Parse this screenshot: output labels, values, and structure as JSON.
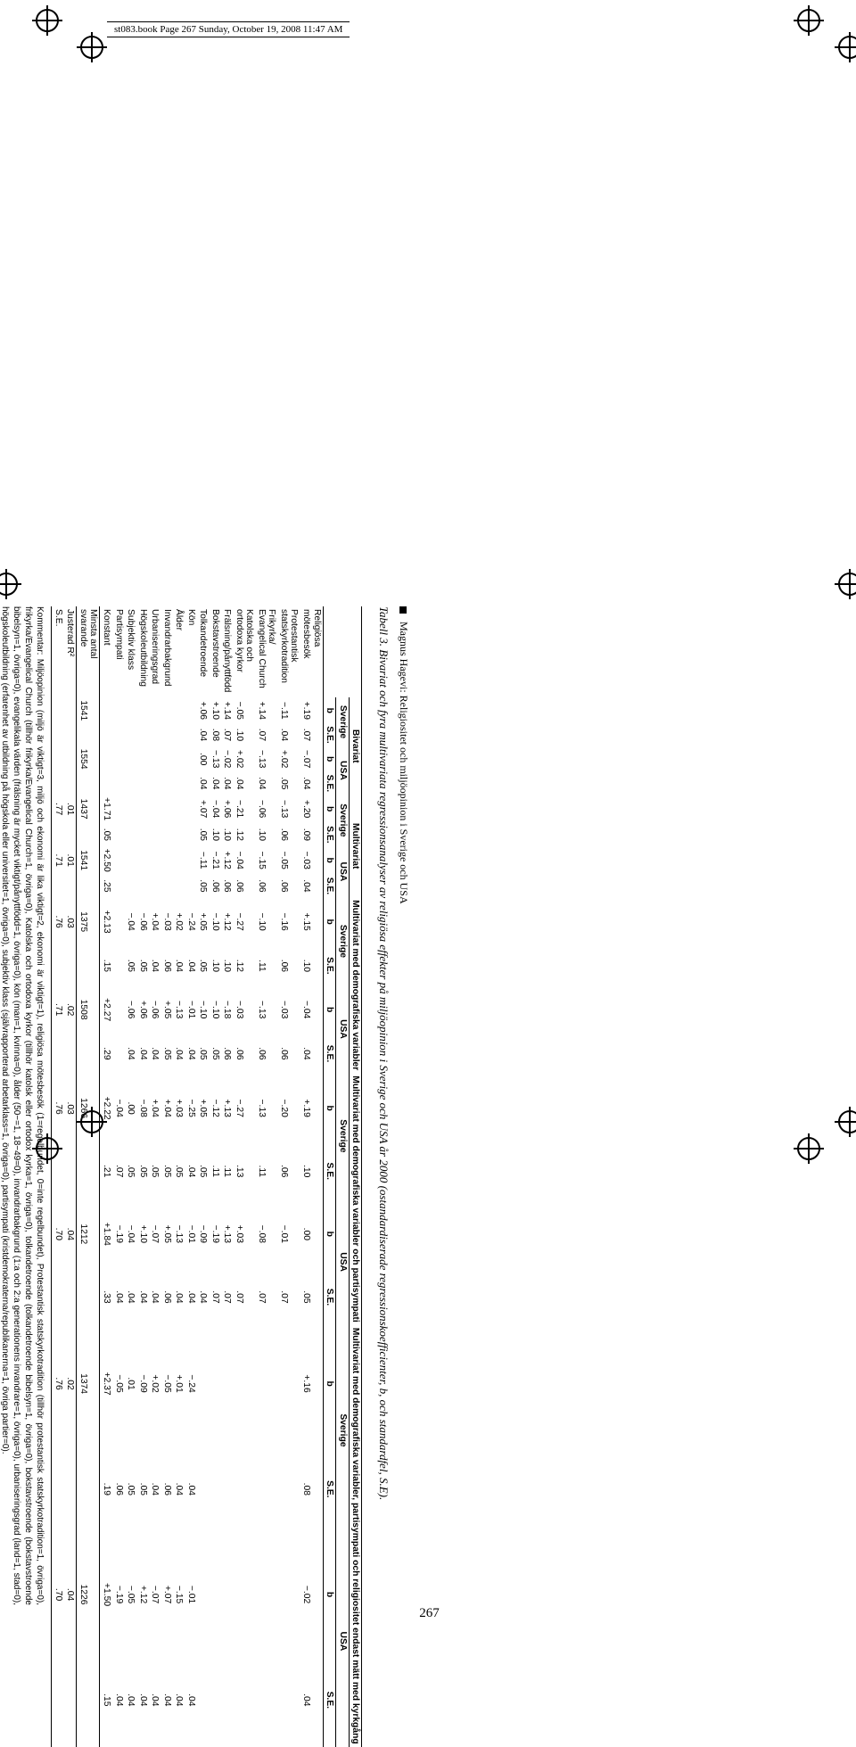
{
  "print_header": "st083.book  Page 267  Sunday, October 19, 2008  11:47 AM",
  "page_number": "267",
  "chapter_author": "Magnus Hagevi:",
  "chapter_title": "Religiositet och miljöopinion i Sverige och USA",
  "table_caption": "Tabell 3. Bivariat och fyra multivariata regressionsanalyser av religiösa effekter på miljöopinion i Sverige och USA år 2000 (ostandardiserade regressionskoefficienter, b, och standardfel, S.E).",
  "model_heads": {
    "m1": "Bivariat",
    "m2": "Multivariat",
    "m3": "Multivariat med demografiska variabler",
    "m4": "Multivariat med demografiska variabler och partisympati",
    "m5": "Multivariat med demografiska variabler, partisympati och religiositet endast mätt med kyrkgång"
  },
  "country": {
    "sv": "Sverige",
    "us": "USA"
  },
  "stat": {
    "b": "b",
    "se": "S.E."
  },
  "rows": [
    {
      "label": "Religiösa mötesbesök",
      "v": [
        "+.19",
        ".07",
        "−.07",
        ".04",
        "+.20",
        ".09",
        "−.03",
        ".04",
        "+.15",
        ".10",
        "−.04",
        ".04",
        "+.19",
        ".10",
        ".00",
        ".05",
        "+.16",
        ".08",
        "−.02",
        ".04"
      ]
    },
    {
      "label": "Protestantisk statskyrkotradition",
      "v": [
        "−.11",
        ".04",
        "+.02",
        ".05",
        "−.13",
        ".06",
        "−.05",
        ".06",
        "−.16",
        ".06",
        "−.03",
        ".06",
        "−.20",
        ".06",
        "−.01",
        ".07",
        "",
        "",
        "",
        ""
      ]
    },
    {
      "label": "Frikyrka/ Evangelical Church",
      "v": [
        "+.14",
        ".07",
        "−.13",
        ".04",
        "−.06",
        ".10",
        "−.15",
        ".06",
        "−.10",
        ".11",
        "−.13",
        ".06",
        "−.13",
        ".11",
        "−.08",
        ".07",
        "",
        "",
        "",
        ""
      ]
    },
    {
      "label": "Katolska och ortodoxa kyrkor",
      "v": [
        "−.05",
        ".10",
        "+.02",
        ".04",
        "−.21",
        ".12",
        "−.04",
        ".06",
        "−.27",
        ".12",
        "−.03",
        ".06",
        "−.27",
        ".13",
        "+.03",
        ".07",
        "",
        "",
        "",
        ""
      ]
    },
    {
      "label": "Frälsning/pånyttfödd",
      "v": [
        "+.14",
        ".07",
        "−.02",
        ".04",
        "+.06",
        ".10",
        "+.12",
        ".06",
        "+.12",
        ".10",
        "−.18",
        ".06",
        "+.13",
        ".11",
        "+.13",
        ".07",
        "",
        "",
        "",
        ""
      ]
    },
    {
      "label": "Bokstavstroende",
      "v": [
        "+.10",
        ".08",
        "−.13",
        ".04",
        "−.04",
        ".10",
        "−.21",
        ".06",
        "−.10",
        ".10",
        "−.10",
        ".05",
        "−.12",
        ".11",
        "−.19",
        ".07",
        "",
        "",
        "",
        ""
      ]
    },
    {
      "label": "Tolkandetroende",
      "v": [
        "+.06",
        ".04",
        ".00",
        ".04",
        "+.07",
        ".05",
        "−.11",
        ".05",
        "+.05",
        ".05",
        "−.10",
        ".05",
        "+.05",
        ".05",
        "−.09",
        ".04",
        "",
        "",
        "",
        ""
      ]
    },
    {
      "label": "Kön",
      "v": [
        "",
        "",
        "",
        "",
        "",
        "",
        "",
        "",
        "−.24",
        ".04",
        "−.01",
        ".04",
        "−.25",
        ".04",
        "−.01",
        ".04",
        "−.24",
        ".04",
        "−.01",
        ".04"
      ]
    },
    {
      "label": "Ålder",
      "v": [
        "",
        "",
        "",
        "",
        "",
        "",
        "",
        "",
        "+.02",
        ".04",
        "−.13",
        ".04",
        "+.03",
        ".05",
        "−.13",
        ".04",
        "+.01",
        ".04",
        "−.15",
        ".04"
      ]
    },
    {
      "label": "Invandrarbakgrund",
      "v": [
        "",
        "",
        "",
        "",
        "",
        "",
        "",
        "",
        "−.03",
        ".06",
        "+.05",
        ".05",
        "+.04",
        ".05",
        "+.05",
        ".06",
        "−.05",
        ".06",
        "+.07",
        ".04"
      ]
    },
    {
      "label": "Urbaniseringsgrad",
      "v": [
        "",
        "",
        "",
        "",
        "",
        "",
        "",
        "",
        "+.04",
        ".04",
        "−.06",
        ".04",
        "+.04",
        ".05",
        "−.07",
        ".04",
        "+.02",
        ".04",
        "−.07",
        ".04"
      ]
    },
    {
      "label": "Högskoleutbildning",
      "v": [
        "",
        "",
        "",
        "",
        "",
        "",
        "",
        "",
        "−.06",
        ".05",
        "+.06",
        ".04",
        "−.08",
        ".05",
        "+.10",
        ".04",
        "−.09",
        ".05",
        "+.12",
        ".04"
      ]
    },
    {
      "label": "Subjektiv klass",
      "v": [
        "",
        "",
        "",
        "",
        "",
        "",
        "",
        "",
        "−.04",
        ".05",
        "−.06",
        ".04",
        ".00",
        ".05",
        "−.04",
        ".04",
        ".01",
        ".05",
        "−.05",
        ".04"
      ]
    },
    {
      "label": "Partisympati",
      "v": [
        "",
        "",
        "",
        "",
        "",
        "",
        "",
        "",
        "",
        "",
        "",
        "",
        "−.04",
        ".07",
        "−.19",
        ".04",
        "−.05",
        ".06",
        "−.19",
        ".04"
      ]
    },
    {
      "label": "Konstant",
      "v": [
        "",
        "",
        "",
        "",
        "+1.71",
        ".05",
        "+2.50",
        ".25",
        "+2.13",
        ".15",
        "+2.27",
        ".29",
        "+2.22",
        ".21",
        "+1.84",
        ".33",
        "+2.37",
        ".19",
        "+1.50",
        ".15"
      ]
    }
  ],
  "n_label": "Minsta antal svarande",
  "n_vals": [
    "1541",
    "",
    "1554",
    "",
    "1437",
    "",
    "1541",
    "",
    "1375",
    "",
    "1508",
    "",
    "1266",
    "",
    "1212",
    "",
    "1374",
    "",
    "1226",
    ""
  ],
  "r2_label": "Justerad R²",
  "r2_vals": [
    "",
    "",
    "",
    "",
    ".01",
    "",
    ".01",
    "",
    ".03",
    "",
    ".02",
    "",
    ".03",
    "",
    ".04",
    "",
    ".02",
    "",
    ".04",
    ""
  ],
  "see_label": "S.E.",
  "see_vals": [
    "",
    "",
    "",
    "",
    ".77",
    "",
    ".71",
    "",
    ".76",
    "",
    ".71",
    "",
    ".76",
    "",
    ".70",
    "",
    ".76",
    "",
    ".70",
    ""
  ],
  "note": "Kommentar: Miljöopinion (miljö är viktigt=3, miljö och ekonomi är lika viktigt=2, ekonomi är viktigt=1), religiösa mötesbesök (1=regelbundet, 0=inte regelbundet), Protestantisk statskyrkotradition (tillhör protestantisk statskyrkotradition=1, övriga=0), frikyrka/Evangelical Church (tillhör frikyrka/Evangelical Church=1, övriga=0), Katolska och ortodoxa kyrkor (tillhör katolsk eller ortodox kyrka=1, övriga=0), tolkandetroende (tolkandetroende bibelsyn=1, övriga=0), bokstavstroende (bokstavstroende bibelsyn=1, övriga=0), evangelikala värden (frälsning är mycket viktigt/pånyttfödd=1, övriga=0), kön (man=1, kvinna=0), ålder (50−=1, 18−49=0), invandrarbakgrund (1:a och 2:a generationens invandrare=1, övriga=0), urbaniseringsgrad (land=1, stad=0), högskoleutbildning (erfarenhet av utbildning på högskola eller universitet=1, övriga=0), subjektiv klass (självrapporterad arbetarklass=1, övriga=0), partisympati (kristdemokraterna/republikanerna=1, övriga partier=0)."
}
